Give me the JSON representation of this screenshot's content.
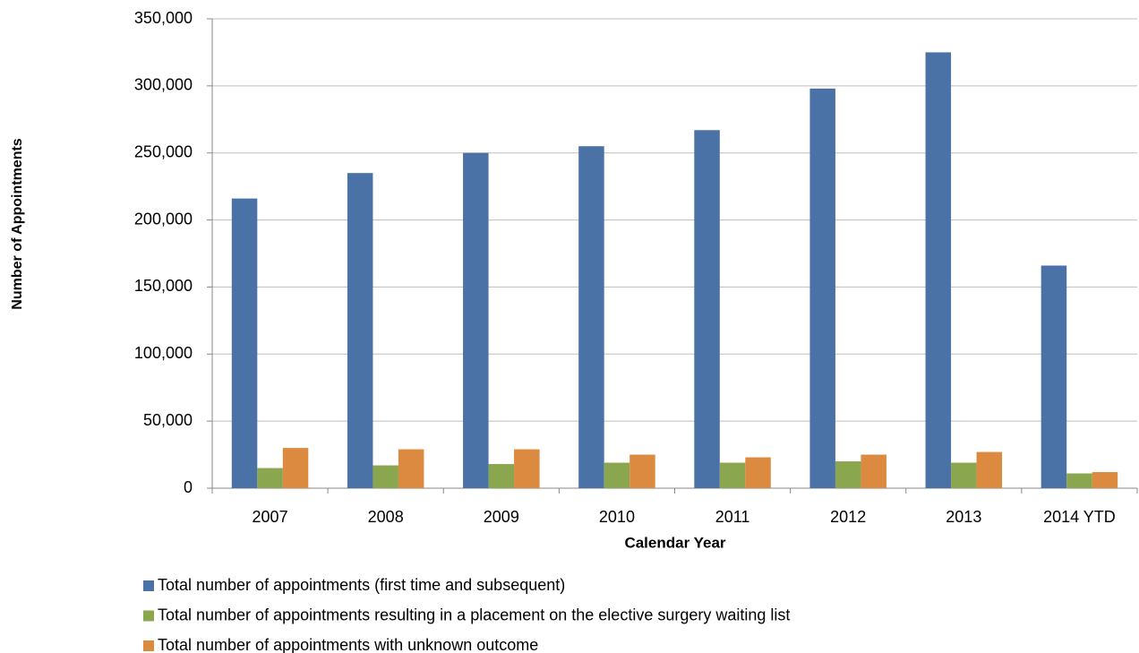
{
  "chart_data": {
    "type": "bar",
    "y_label": "Number of Appointments",
    "x_label": "Calendar Year",
    "categories": [
      "2007",
      "2008",
      "2009",
      "2010",
      "2011",
      "2012",
      "2013",
      "2014 YTD"
    ],
    "series": [
      {
        "name": "Total number of appointments (first time and subsequent)",
        "color": "#4a72a6",
        "values": [
          216000,
          235000,
          250000,
          255000,
          267000,
          298000,
          325000,
          166000
        ]
      },
      {
        "name": "Total number of appointments resulting in a placement on the elective surgery waiting list",
        "color": "#8aa64e",
        "values": [
          15000,
          17000,
          18000,
          19000,
          19000,
          20000,
          19000,
          11000
        ]
      },
      {
        "name": "Total number of appointments with unknown outcome",
        "color": "#db8a3f",
        "values": [
          30000,
          29000,
          29000,
          25000,
          23000,
          25000,
          27000,
          12000
        ]
      }
    ],
    "ylim": [
      0,
      350000
    ],
    "yticks": [
      0,
      {
        "value": 50000,
        "label": "50,000"
      },
      {
        "value": 100000,
        "label": "100,000"
      },
      {
        "value": 150000,
        "label": "150,000"
      },
      {
        "value": 200000,
        "label": "200,000"
      },
      {
        "value": 250000,
        "label": "250,000"
      },
      {
        "value": 300000,
        "label": "300,000"
      },
      {
        "value": 350000,
        "label": "350,000"
      }
    ],
    "grid": true,
    "legend": "bottom"
  }
}
